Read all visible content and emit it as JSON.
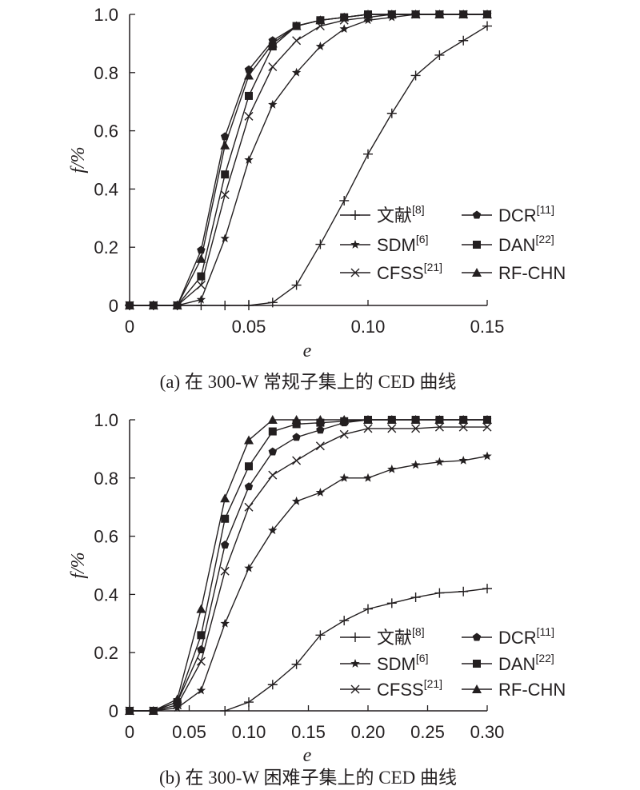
{
  "chart_data": [
    {
      "type": "line",
      "caption": "(a) 在 300-W 常规子集上的 CED 曲线",
      "xlabel": "e",
      "ylabel": "f/%",
      "xlim": [
        0,
        0.15
      ],
      "ylim": [
        0,
        1.0
      ],
      "xticks": [
        "0",
        "0.05",
        "0.10",
        "0.15"
      ],
      "yticks": [
        "0",
        "0.2",
        "0.4",
        "0.6",
        "0.8",
        "1.0"
      ],
      "grid": false,
      "legend_position": "bottom-right",
      "series": [
        {
          "name": "文献[8]",
          "marker": "plus",
          "x": [
            0,
            0.01,
            0.02,
            0.03,
            0.04,
            0.05,
            0.06,
            0.07,
            0.08,
            0.09,
            0.1,
            0.11,
            0.12,
            0.13,
            0.14,
            0.15
          ],
          "y": [
            0,
            0,
            0,
            0,
            0,
            0,
            0.01,
            0.07,
            0.21,
            0.36,
            0.52,
            0.66,
            0.79,
            0.86,
            0.91,
            0.96
          ]
        },
        {
          "name": "SDM[6]",
          "marker": "star",
          "x": [
            0,
            0.01,
            0.02,
            0.03,
            0.04,
            0.05,
            0.06,
            0.07,
            0.08,
            0.09,
            0.1,
            0.11,
            0.12,
            0.13,
            0.14,
            0.15
          ],
          "y": [
            0,
            0,
            0,
            0.02,
            0.23,
            0.5,
            0.69,
            0.8,
            0.89,
            0.95,
            0.98,
            0.99,
            1.0,
            1.0,
            1.0,
            1.0
          ]
        },
        {
          "name": "CFSS[21]",
          "marker": "cross",
          "x": [
            0,
            0.01,
            0.02,
            0.03,
            0.04,
            0.05,
            0.06,
            0.07,
            0.08,
            0.09,
            0.1,
            0.11,
            0.12,
            0.13,
            0.14,
            0.15
          ],
          "y": [
            0,
            0,
            0,
            0.07,
            0.38,
            0.65,
            0.82,
            0.91,
            0.96,
            0.98,
            0.99,
            1.0,
            1.0,
            1.0,
            1.0,
            1.0
          ]
        },
        {
          "name": "DCR[11]",
          "marker": "pentagon",
          "x": [
            0,
            0.01,
            0.02,
            0.03,
            0.04,
            0.05,
            0.06,
            0.07,
            0.08,
            0.09,
            0.1,
            0.11,
            0.12,
            0.13,
            0.14,
            0.15
          ],
          "y": [
            0,
            0,
            0,
            0.19,
            0.58,
            0.81,
            0.91,
            0.96,
            0.98,
            0.99,
            1.0,
            1.0,
            1.0,
            1.0,
            1.0,
            1.0
          ]
        },
        {
          "name": "DAN[22]",
          "marker": "square",
          "x": [
            0,
            0.01,
            0.02,
            0.03,
            0.04,
            0.05,
            0.06,
            0.07,
            0.08,
            0.09,
            0.1,
            0.11,
            0.12,
            0.13,
            0.14,
            0.15
          ],
          "y": [
            0,
            0,
            0,
            0.1,
            0.45,
            0.72,
            0.89,
            0.96,
            0.98,
            0.99,
            1.0,
            1.0,
            1.0,
            1.0,
            1.0,
            1.0
          ]
        },
        {
          "name": "RF-CHN",
          "marker": "triangle",
          "x": [
            0,
            0.01,
            0.02,
            0.03,
            0.04,
            0.05,
            0.06,
            0.07,
            0.08,
            0.09,
            0.1,
            0.11,
            0.12,
            0.13,
            0.14,
            0.15
          ],
          "y": [
            0,
            0,
            0,
            0.16,
            0.55,
            0.79,
            0.9,
            0.96,
            0.98,
            0.99,
            1.0,
            1.0,
            1.0,
            1.0,
            1.0,
            1.0
          ]
        }
      ]
    },
    {
      "type": "line",
      "caption": "(b) 在 300-W 困难子集上的 CED 曲线",
      "xlabel": "e",
      "ylabel": "f/%",
      "xlim": [
        0,
        0.3
      ],
      "ylim": [
        0,
        1.0
      ],
      "xticks": [
        "0",
        "0.05",
        "0.10",
        "0.15",
        "0.20",
        "0.25",
        "0.30"
      ],
      "yticks": [
        "0",
        "0.2",
        "0.4",
        "0.6",
        "0.8",
        "1.0"
      ],
      "grid": false,
      "legend_position": "bottom-right",
      "series": [
        {
          "name": "文献[8]",
          "marker": "plus",
          "x": [
            0.08,
            0.1,
            0.12,
            0.14,
            0.16,
            0.18,
            0.2,
            0.22,
            0.24,
            0.26,
            0.28,
            0.3
          ],
          "y": [
            0,
            0.03,
            0.09,
            0.16,
            0.26,
            0.31,
            0.35,
            0.37,
            0.39,
            0.405,
            0.41,
            0.42
          ]
        },
        {
          "name": "SDM[6]",
          "marker": "star",
          "x": [
            0,
            0.02,
            0.04,
            0.06,
            0.08,
            0.1,
            0.12,
            0.14,
            0.16,
            0.18,
            0.2,
            0.22,
            0.24,
            0.26,
            0.28,
            0.3
          ],
          "y": [
            0,
            0,
            0.01,
            0.07,
            0.3,
            0.49,
            0.62,
            0.72,
            0.75,
            0.8,
            0.8,
            0.83,
            0.845,
            0.855,
            0.86,
            0.875
          ]
        },
        {
          "name": "CFSS[21]",
          "marker": "cross",
          "x": [
            0,
            0.02,
            0.04,
            0.06,
            0.08,
            0.1,
            0.12,
            0.14,
            0.16,
            0.18,
            0.2,
            0.22,
            0.24,
            0.26,
            0.28,
            0.3
          ],
          "y": [
            0,
            0,
            0.02,
            0.17,
            0.48,
            0.7,
            0.81,
            0.86,
            0.91,
            0.95,
            0.97,
            0.97,
            0.97,
            0.975,
            0.975,
            0.975
          ]
        },
        {
          "name": "DCR[11]",
          "marker": "pentagon",
          "x": [
            0,
            0.02,
            0.04,
            0.06,
            0.08,
            0.1,
            0.12,
            0.14,
            0.16,
            0.18,
            0.2,
            0.22,
            0.24,
            0.26,
            0.28,
            0.3
          ],
          "y": [
            0,
            0,
            0.03,
            0.21,
            0.57,
            0.77,
            0.89,
            0.94,
            0.965,
            0.99,
            1.0,
            1.0,
            1.0,
            1.0,
            1.0,
            1.0
          ]
        },
        {
          "name": "DAN[22]",
          "marker": "square",
          "x": [
            0,
            0.02,
            0.04,
            0.06,
            0.08,
            0.1,
            0.12,
            0.14,
            0.16,
            0.18,
            0.2,
            0.22,
            0.24,
            0.26,
            0.28,
            0.3
          ],
          "y": [
            0,
            0,
            0.03,
            0.26,
            0.66,
            0.84,
            0.96,
            0.985,
            0.99,
            0.995,
            1.0,
            1.0,
            1.0,
            1.0,
            1.0,
            1.0
          ]
        },
        {
          "name": "RF-CHN",
          "marker": "triangle",
          "x": [
            0,
            0.02,
            0.04,
            0.06,
            0.08,
            0.1,
            0.12,
            0.14,
            0.16,
            0.18,
            0.2,
            0.22,
            0.24,
            0.26,
            0.28,
            0.3
          ],
          "y": [
            0,
            0,
            0.04,
            0.35,
            0.73,
            0.93,
            1.0,
            1.0,
            1.0,
            1.0,
            1.0,
            1.0,
            1.0,
            1.0,
            1.0,
            1.0
          ]
        }
      ]
    }
  ]
}
